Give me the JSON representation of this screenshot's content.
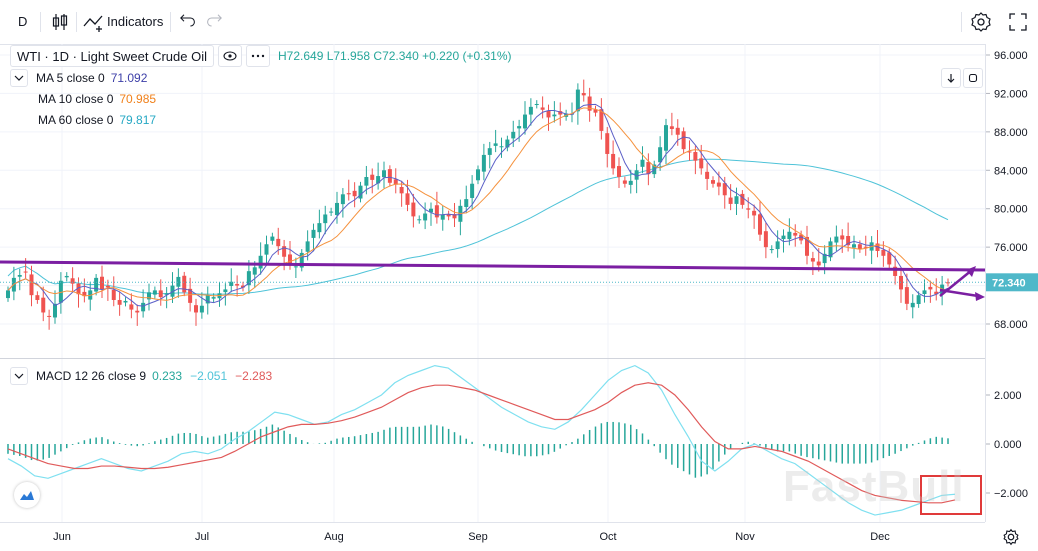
{
  "toolbar": {
    "interval": "D",
    "indicators_label": "Indicators"
  },
  "legend": {
    "symbol": "WTI · 1D · Light Sweet Crude Oil",
    "ohlc_text": "H72.649  L71.958  C72.340  +0.220 (+0.31%)",
    "ma5_label": "MA 5 close 0",
    "ma5_value": "71.092",
    "ma10_label": "MA 10 close 0",
    "ma10_value": "70.985",
    "ma60_label": "MA 60 close 0",
    "ma60_value": "79.817",
    "macd_label": "MACD 12 26 close 9",
    "macd_hist": "0.233",
    "macd_line": "−2.051",
    "macd_signal": "−2.283"
  },
  "watermark": "FastBull",
  "colors": {
    "up": "#26a69a",
    "down": "#ef5350",
    "ma5": "#5b5fc7",
    "ma10": "#f5923e",
    "ma60": "#4fc3d8",
    "macd_line": "#7fe0f0",
    "macd_signal": "#e05a5a",
    "trendline": "#7b1fa2",
    "price_tag": "#4fb8c9",
    "highlight_box": "#e03a3a"
  },
  "chart_data": [
    {
      "type": "candlestick",
      "title": "WTI · 1D · Light Sweet Crude Oil",
      "x_labels": [
        "Jun",
        "Jul",
        "Aug",
        "Sep",
        "Oct",
        "Nov",
        "Dec"
      ],
      "price_ticks": [
        "96.000",
        "92.000",
        "88.000",
        "84.000",
        "80.000",
        "76.000",
        "72.000",
        "68.000"
      ],
      "ylim": [
        66,
        97
      ],
      "last_price": "72.340",
      "close": [
        71.5,
        72.8,
        73.1,
        73.4,
        71.0,
        70.5,
        69.2,
        68.8,
        70.1,
        72.5,
        73.0,
        72.2,
        71.1,
        70.9,
        71.5,
        72.8,
        71.6,
        71.8,
        70.5,
        70.0,
        70.4,
        69.5,
        69.2,
        70.2,
        71.3,
        71.5,
        70.8,
        71.2,
        72.0,
        72.9,
        71.3,
        70.2,
        69.2,
        69.9,
        71.0,
        70.8,
        71.2,
        71.6,
        72.4,
        72.0,
        71.8,
        73.5,
        73.9,
        75.1,
        76.3,
        77.1,
        76.1,
        75.0,
        74.3,
        74.0,
        75.4,
        76.6,
        77.8,
        78.5,
        79.4,
        79.7,
        80.6,
        81.5,
        81.5,
        81.3,
        82.4,
        83.3,
        83.0,
        83.4,
        84.0,
        82.7,
        82.5,
        81.6,
        80.4,
        79.2,
        78.9,
        79.5,
        80.0,
        79.1,
        79.4,
        79.2,
        79.0,
        80.3,
        81.0,
        82.6,
        84.1,
        85.6,
        86.3,
        86.8,
        86.5,
        87.2,
        88.0,
        88.6,
        89.8,
        90.6,
        90.9,
        90.3,
        89.5,
        89.8,
        89.8,
        89.9,
        89.9,
        92.4,
        91.8,
        90.2,
        90.0,
        88.1,
        85.7,
        84.2,
        83.3,
        82.6,
        82.9,
        84.0,
        85.1,
        83.6,
        84.6,
        86.4,
        88.7,
        88.3,
        87.7,
        86.2,
        85.9,
        85.0,
        84.2,
        83.1,
        82.6,
        82.3,
        81.4,
        80.5,
        81.3,
        80.4,
        79.9,
        79.3,
        77.3,
        76.0,
        75.8,
        76.6,
        77.2,
        77.6,
        77.2,
        76.7,
        75.1,
        74.5,
        74.1,
        75.3,
        76.6,
        77.1,
        76.8,
        76.2,
        76.3,
        75.8,
        76.0,
        76.5,
        75.6,
        75.1,
        74.2,
        73.0,
        71.6,
        70.1,
        70.2,
        71.0,
        71.5,
        71.6,
        71.1,
        72.1,
        72.3
      ],
      "series": [
        {
          "name": "MA 5 close 0",
          "last": 71.092
        },
        {
          "name": "MA 10 close 0",
          "last": 70.985
        },
        {
          "name": "MA 60 close 0",
          "last": 79.817
        }
      ]
    },
    {
      "type": "line",
      "title": "MACD 12 26 close 9",
      "yticks": [
        "2.000",
        "0.000",
        "−2.000"
      ],
      "ylim": [
        -3.0,
        3.2
      ],
      "series": [
        {
          "name": "MACD",
          "values": [
            -0.6,
            -0.9,
            -1.3,
            -1.4,
            -1.2,
            -1.0,
            -0.8,
            -0.6,
            -0.8,
            -1.0,
            -1.1,
            -0.9,
            -0.7,
            -0.4,
            -0.3,
            -0.4,
            -0.2,
            0.2,
            0.5,
            0.9,
            1.3,
            1.2,
            1.0,
            0.8,
            0.9,
            1.2,
            1.4,
            1.7,
            2.0,
            2.5,
            2.8,
            3.0,
            3.2,
            3.1,
            2.7,
            2.3,
            1.9,
            1.5,
            1.2,
            0.9,
            0.7,
            0.6,
            0.9,
            1.4,
            2.0,
            2.6,
            3.0,
            3.2,
            2.9,
            2.2,
            1.2,
            0.3,
            -0.7,
            -1.1,
            -0.7,
            -0.2,
            0.0,
            -0.3,
            -0.6,
            -0.8,
            -1.2,
            -1.6,
            -2.0,
            -2.4,
            -2.7,
            -2.9,
            -2.8,
            -2.7,
            -2.5,
            -2.3,
            -2.1,
            -2.051
          ]
        },
        {
          "name": "Signal",
          "values": [
            -0.2,
            -0.4,
            -0.6,
            -0.8,
            -0.9,
            -1.0,
            -1.0,
            -0.9,
            -0.9,
            -0.95,
            -1.0,
            -1.0,
            -0.95,
            -0.85,
            -0.75,
            -0.65,
            -0.55,
            -0.3,
            0.0,
            0.3,
            0.5,
            0.7,
            0.8,
            0.8,
            0.85,
            0.95,
            1.1,
            1.3,
            1.5,
            1.8,
            2.1,
            2.3,
            2.4,
            2.4,
            2.3,
            2.2,
            2.0,
            1.8,
            1.6,
            1.4,
            1.2,
            1.0,
            1.0,
            1.2,
            1.4,
            1.7,
            2.1,
            2.4,
            2.5,
            2.4,
            2.0,
            1.4,
            0.7,
            0.1,
            -0.2,
            -0.2,
            -0.1,
            -0.2,
            -0.3,
            -0.5,
            -0.7,
            -1.0,
            -1.3,
            -1.6,
            -1.9,
            -2.1,
            -2.2,
            -2.3,
            -2.35,
            -2.4,
            -2.4,
            -2.283
          ]
        },
        {
          "name": "Histogram",
          "values": [
            -0.4,
            -0.5,
            -0.7,
            -0.6,
            -0.3,
            0.0,
            0.2,
            0.3,
            0.1,
            -0.05,
            -0.1,
            0.1,
            0.25,
            0.45,
            0.45,
            0.25,
            0.35,
            0.5,
            0.5,
            0.6,
            0.8,
            0.5,
            0.2,
            0.0,
            0.05,
            0.25,
            0.3,
            0.4,
            0.5,
            0.7,
            0.7,
            0.7,
            0.8,
            0.7,
            0.4,
            0.1,
            -0.1,
            -0.3,
            -0.4,
            -0.5,
            -0.5,
            -0.4,
            -0.1,
            0.2,
            0.6,
            0.9,
            0.9,
            0.8,
            0.4,
            -0.2,
            -0.8,
            -1.1,
            -1.4,
            -1.2,
            -0.5,
            0.0,
            0.1,
            -0.1,
            -0.3,
            -0.3,
            -0.5,
            -0.6,
            -0.7,
            -0.8,
            -0.8,
            -0.8,
            -0.6,
            -0.4,
            -0.15,
            0.1,
            0.3,
            0.233
          ]
        }
      ]
    }
  ]
}
